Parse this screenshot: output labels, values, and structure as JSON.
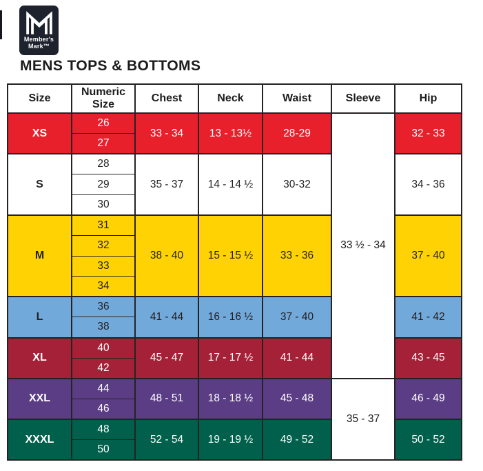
{
  "logo": {
    "brand_line1": "Member's",
    "brand_line2": "Mark™",
    "bg_color": "#1e222c",
    "mark_icon": "members-mark-m"
  },
  "title": "MENS TOPS & BOTTOMS",
  "colors": {
    "table_border": "#262223",
    "header_bg": "#ffffff",
    "header_text": "#1c1c1e"
  },
  "chart_data": {
    "type": "table",
    "title": "MENS TOPS & BOTTOMS",
    "columns": [
      "Size",
      "Numeric Size",
      "Chest",
      "Neck",
      "Waist",
      "Sleeve",
      "Hip"
    ],
    "size_groups": [
      {
        "size": "XS",
        "numeric_sizes": [
          "26",
          "27"
        ],
        "chest": "33 - 34",
        "neck": "13 - 13½",
        "waist": "28-29",
        "hip": "32 - 33",
        "bg": "#E8202C",
        "text": "#FFFFFF"
      },
      {
        "size": "S",
        "numeric_sizes": [
          "28",
          "29",
          "30"
        ],
        "chest": "35 - 37",
        "neck": "14 - 14 ½",
        "waist": "30-32",
        "hip": "34 - 36",
        "bg": "#FFFFFF",
        "text": "#231F20"
      },
      {
        "size": "M",
        "numeric_sizes": [
          "31",
          "32",
          "33",
          "34"
        ],
        "chest": "38 - 40",
        "neck": "15 - 15 ½",
        "waist": "33 - 36",
        "hip": "37 - 40",
        "bg": "#FFD303",
        "text": "#231F20"
      },
      {
        "size": "L",
        "numeric_sizes": [
          "36",
          "38"
        ],
        "chest": "41 - 44",
        "neck": "16 - 16 ½",
        "waist": "37 - 40",
        "hip": "41 - 42",
        "bg": "#72A9DB",
        "text": "#231F20"
      },
      {
        "size": "XL",
        "numeric_sizes": [
          "40",
          "42"
        ],
        "chest": "45 - 47",
        "neck": "17 - 17 ½",
        "waist": "41 - 44",
        "hip": "43 - 45",
        "bg": "#A42138",
        "text": "#FFFFFF"
      },
      {
        "size": "XXL",
        "numeric_sizes": [
          "44",
          "46"
        ],
        "chest": "48 - 51",
        "neck": "18 - 18 ½",
        "waist": "45 - 48",
        "hip": "46 - 49",
        "bg": "#5B3D85",
        "text": "#FFFFFF"
      },
      {
        "size": "XXXL",
        "numeric_sizes": [
          "48",
          "50"
        ],
        "chest": "52 - 54",
        "neck": "19 - 19 ½",
        "waist": "49 - 52",
        "hip": "50 - 52",
        "bg": "#00604B",
        "text": "#FFFFFF"
      }
    ],
    "sleeve_spans": [
      {
        "label": "33 ½ - 34",
        "sizes": [
          "XS",
          "S",
          "M",
          "L",
          "XL"
        ]
      },
      {
        "label": "35 - 37",
        "sizes": [
          "XXL",
          "XXXL"
        ]
      }
    ]
  }
}
